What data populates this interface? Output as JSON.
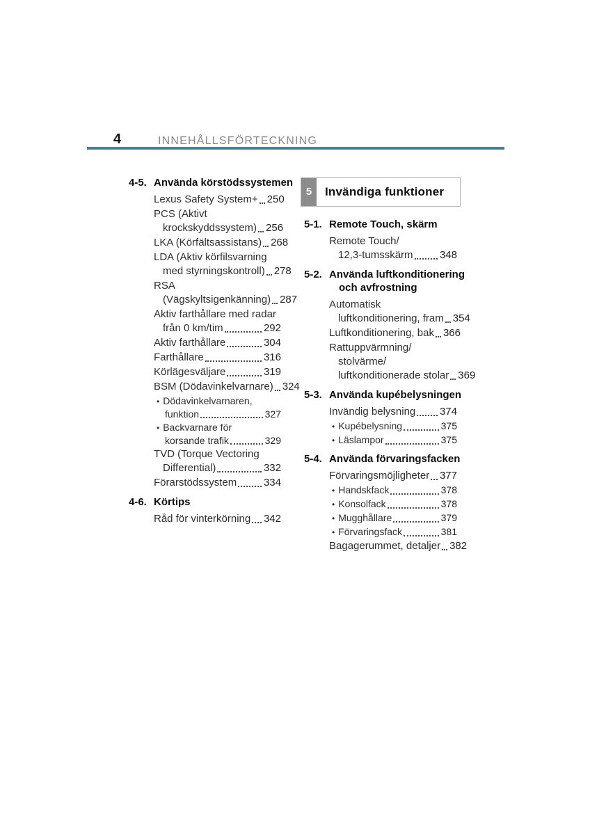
{
  "header": {
    "page_number": "4",
    "title": "INNEHÅLLSFÖRTECKNING"
  },
  "glyphs": {
    "bullet": "•"
  },
  "colors": {
    "rule_accent": "#4d7f93",
    "chapter_badge_bg": "#8c8c8c",
    "chapter_badge_text": "#ffffff",
    "header_title_gray": "#8b8b8b",
    "banner_border": "#b3b3b3",
    "body_text": "#2e2e2e",
    "leader_dots": "#4b4b4b"
  },
  "chapter_banner": {
    "number": "5",
    "title": "Invändiga funktioner"
  },
  "toc": {
    "left_sections": [
      {
        "number": "4-5.",
        "title_lines": [
          "Använda körstödssystemen"
        ],
        "entries": [
          {
            "lines": [
              "Lexus Safety System+"
            ],
            "page": "250"
          },
          {
            "lines": [
              "PCS (Aktivt",
              "krockskyddssystem)"
            ],
            "page": "256"
          },
          {
            "lines": [
              "LKA (Körfältsassistans)"
            ],
            "page": "268"
          },
          {
            "lines": [
              "LDA (Aktiv körfilsvarning",
              "med styrningskontroll)"
            ],
            "page": "278"
          },
          {
            "lines": [
              "RSA",
              "(Vägskyltsigenkänning)"
            ],
            "page": "287"
          },
          {
            "lines": [
              "Aktiv farthållare med radar",
              "från 0 km/tim"
            ],
            "page": "292"
          },
          {
            "lines": [
              "Aktiv farthållare"
            ],
            "page": "304"
          },
          {
            "lines": [
              "Farthållare"
            ],
            "page": "316"
          },
          {
            "lines": [
              "Körlägesväljare"
            ],
            "page": "319"
          },
          {
            "lines": [
              "BSM (Dödavinkelvarnare)"
            ],
            "page": "324"
          },
          {
            "bullet": true,
            "lines": [
              "Dödavinkelvarnaren,",
              "funktion"
            ],
            "page": "327"
          },
          {
            "bullet": true,
            "lines": [
              "Backvarnare för",
              "korsande trafik"
            ],
            "page": "329"
          },
          {
            "lines": [
              "TVD (Torque Vectoring",
              "Differential)"
            ],
            "page": "332"
          },
          {
            "lines": [
              "Förarstödssystem"
            ],
            "page": "334"
          }
        ]
      },
      {
        "number": "4-6.",
        "title_lines": [
          "Körtips"
        ],
        "entries": [
          {
            "lines": [
              "Råd för vinterkörning"
            ],
            "page": "342"
          }
        ]
      }
    ],
    "right_sections": [
      {
        "number": "5-1.",
        "title_lines": [
          "Remote Touch, skärm"
        ],
        "entries": [
          {
            "lines": [
              "Remote Touch/",
              "12,3-tumsskärm"
            ],
            "page": "348"
          }
        ]
      },
      {
        "number": "5-2.",
        "title_lines": [
          "Använda luftkonditionering",
          "och avfrostning"
        ],
        "entries": [
          {
            "lines": [
              "Automatisk",
              "luftkonditionering, fram"
            ],
            "page": "354"
          },
          {
            "lines": [
              "Luftkonditionering, bak"
            ],
            "page": "366"
          },
          {
            "lines": [
              "Rattuppvärmning/",
              "stolvärme/",
              "luftkonditionerade stolar"
            ],
            "page": "369"
          }
        ]
      },
      {
        "number": "5-3.",
        "title_lines": [
          "Använda kupébelysningen"
        ],
        "entries": [
          {
            "lines": [
              "Invändig belysning"
            ],
            "page": "374"
          },
          {
            "bullet": true,
            "lines": [
              "Kupébelysning"
            ],
            "page": "375"
          },
          {
            "bullet": true,
            "lines": [
              "Läslampor"
            ],
            "page": "375"
          }
        ]
      },
      {
        "number": "5-4.",
        "title_lines": [
          "Använda förvaringsfacken"
        ],
        "entries": [
          {
            "lines": [
              "Förvaringsmöjligheter"
            ],
            "page": "377"
          },
          {
            "bullet": true,
            "lines": [
              "Handskfack"
            ],
            "page": "378"
          },
          {
            "bullet": true,
            "lines": [
              "Konsolfack"
            ],
            "page": "378"
          },
          {
            "bullet": true,
            "lines": [
              "Mugghållare"
            ],
            "page": "379"
          },
          {
            "bullet": true,
            "lines": [
              "Förvaringsfack"
            ],
            "page": "381"
          },
          {
            "lines": [
              "Bagagerummet, detaljer"
            ],
            "page": "382"
          }
        ]
      }
    ]
  }
}
